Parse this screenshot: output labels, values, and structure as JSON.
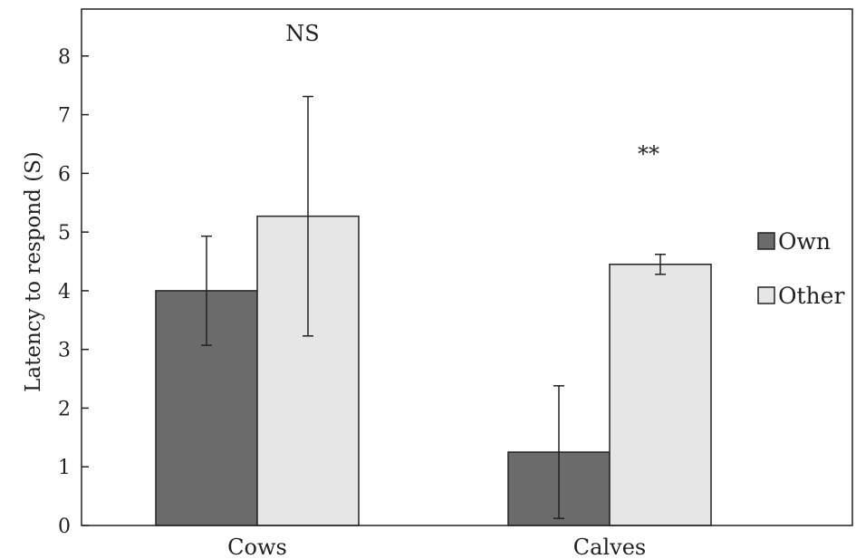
{
  "chart_data": {
    "type": "bar",
    "title": "",
    "xlabel": "",
    "ylabel": "Latency to respond (S)",
    "ylim": [
      0,
      8.8
    ],
    "yticks": [
      0,
      1,
      2,
      3,
      4,
      5,
      6,
      7,
      8
    ],
    "categories": [
      "Cows",
      "Calves"
    ],
    "series": [
      {
        "name": "Own",
        "values": [
          4.0,
          1.25
        ],
        "error": [
          0.93,
          1.13
        ],
        "color": "#6b6b6b"
      },
      {
        "name": "Other",
        "values": [
          5.27,
          4.45
        ],
        "error": [
          2.04,
          0.17
        ],
        "color": "#e6e6e6"
      }
    ],
    "annotations": [
      "NS",
      "**"
    ],
    "legend_position": "right"
  }
}
